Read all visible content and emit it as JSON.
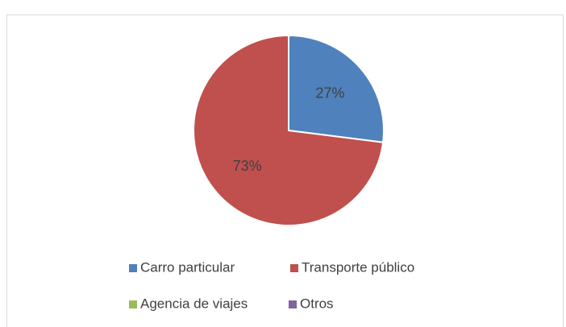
{
  "chart_data": {
    "type": "pie",
    "categories": [
      "Carro particular",
      "Transporte público",
      "Agencia de viajes",
      "Otros"
    ],
    "values": [
      27,
      73,
      0,
      0
    ],
    "value_labels": [
      "27%",
      "73%",
      null,
      null
    ],
    "colors": [
      "#4f81bd",
      "#c0504d",
      "#9bbb59",
      "#8064a2"
    ],
    "legend": "bottom"
  }
}
